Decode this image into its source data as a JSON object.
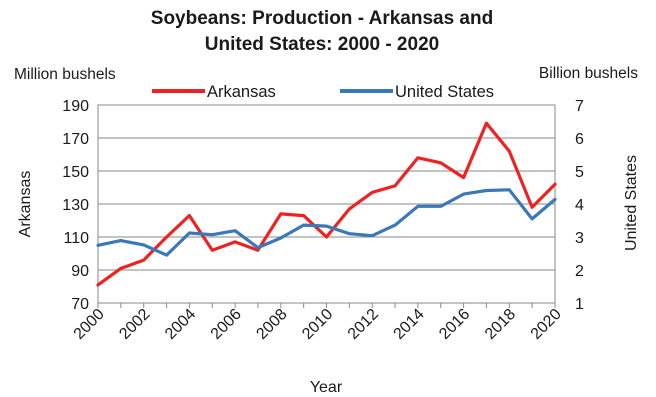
{
  "chart_data": {
    "type": "line",
    "title_line1": "Soybeans: Production - Arkansas and",
    "title_line2": "United States: 2000 - 2020",
    "left_unit": "Million bushels",
    "right_unit": "Billion bushels",
    "xlabel": "Year",
    "ylabel_left": "Arkansas",
    "ylabel_right": "United States",
    "x": [
      2000,
      2001,
      2002,
      2003,
      2004,
      2005,
      2006,
      2007,
      2008,
      2009,
      2010,
      2011,
      2012,
      2013,
      2014,
      2015,
      2016,
      2017,
      2018,
      2019,
      2020
    ],
    "x_ticks": [
      "2000",
      "2002",
      "2004",
      "2006",
      "2008",
      "2010",
      "2012",
      "2014",
      "2016",
      "2018",
      "2020"
    ],
    "ylim_left": [
      70,
      190
    ],
    "yticks_left": [
      "190",
      "170",
      "150",
      "130",
      "110",
      "90",
      "70"
    ],
    "ylim_right": [
      1,
      7
    ],
    "yticks_right": [
      "7",
      "6",
      "5",
      "4",
      "3",
      "2",
      "1"
    ],
    "grid": "horizontal",
    "legend_position": "top",
    "series": [
      {
        "name": "Arkansas",
        "axis": "left",
        "color": "#ee2222",
        "values": [
          81,
          91,
          96,
          110,
          123,
          102,
          107,
          102,
          124,
          123,
          110,
          127,
          137,
          141,
          158,
          155,
          146,
          179,
          162,
          128,
          142
        ]
      },
      {
        "name": "United States",
        "axis": "right",
        "color": "#3a78b8",
        "values": [
          2.75,
          2.89,
          2.76,
          2.45,
          3.12,
          3.07,
          3.19,
          2.68,
          2.97,
          3.36,
          3.33,
          3.1,
          3.04,
          3.36,
          3.93,
          3.93,
          4.3,
          4.41,
          4.43,
          3.55,
          4.14
        ]
      }
    ]
  }
}
